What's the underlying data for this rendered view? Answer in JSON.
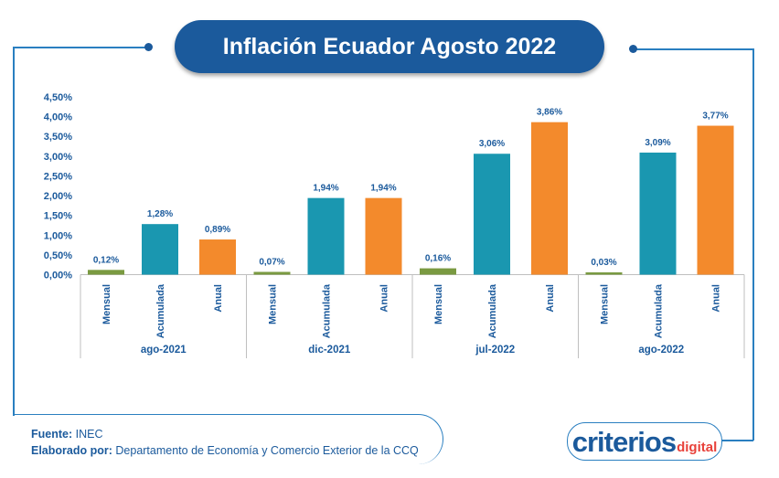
{
  "title": "Inflación Ecuador Agosto 2022",
  "source_label": "Fuente:",
  "source_value": "INEC",
  "author_label": "Elaborado por:",
  "author_value": "Departamento de Economía y Comercio Exterior de la CCQ",
  "logo": {
    "main": "criterios",
    "sub": "digital"
  },
  "colors": {
    "Mensual": "#7a9a41",
    "Acumulada": "#1a97b0",
    "Anual": "#f38a2c",
    "text": "#1b5a9c"
  },
  "chart_data": {
    "type": "bar",
    "title": "Inflación Ecuador Agosto 2022",
    "ylim": [
      0,
      4.5
    ],
    "yticks": [
      "0,00%",
      "0,50%",
      "1,00%",
      "1,50%",
      "2,00%",
      "2,50%",
      "3,00%",
      "3,50%",
      "4,00%",
      "4,50%"
    ],
    "groups": [
      {
        "name": "ago-2021",
        "bars": [
          {
            "category": "Mensual",
            "value": 0.12,
            "label": "0,12%"
          },
          {
            "category": "Acumulada",
            "value": 1.28,
            "label": "1,28%"
          },
          {
            "category": "Anual",
            "value": 0.89,
            "label": "0,89%"
          }
        ]
      },
      {
        "name": "dic-2021",
        "bars": [
          {
            "category": "Mensual",
            "value": 0.07,
            "label": "0,07%"
          },
          {
            "category": "Acumulada",
            "value": 1.94,
            "label": "1,94%"
          },
          {
            "category": "Anual",
            "value": 1.94,
            "label": "1,94%"
          }
        ]
      },
      {
        "name": "jul-2022",
        "bars": [
          {
            "category": "Mensual",
            "value": 0.16,
            "label": "0,16%"
          },
          {
            "category": "Acumulada",
            "value": 3.06,
            "label": "3,06%"
          },
          {
            "category": "Anual",
            "value": 3.86,
            "label": "3,86%"
          }
        ]
      },
      {
        "name": "ago-2022",
        "bars": [
          {
            "category": "Mensual",
            "value": 0.03,
            "label": "0,03%"
          },
          {
            "category": "Acumulada",
            "value": 3.09,
            "label": "3,09%"
          },
          {
            "category": "Anual",
            "value": 3.77,
            "label": "3,77%"
          }
        ]
      }
    ]
  }
}
